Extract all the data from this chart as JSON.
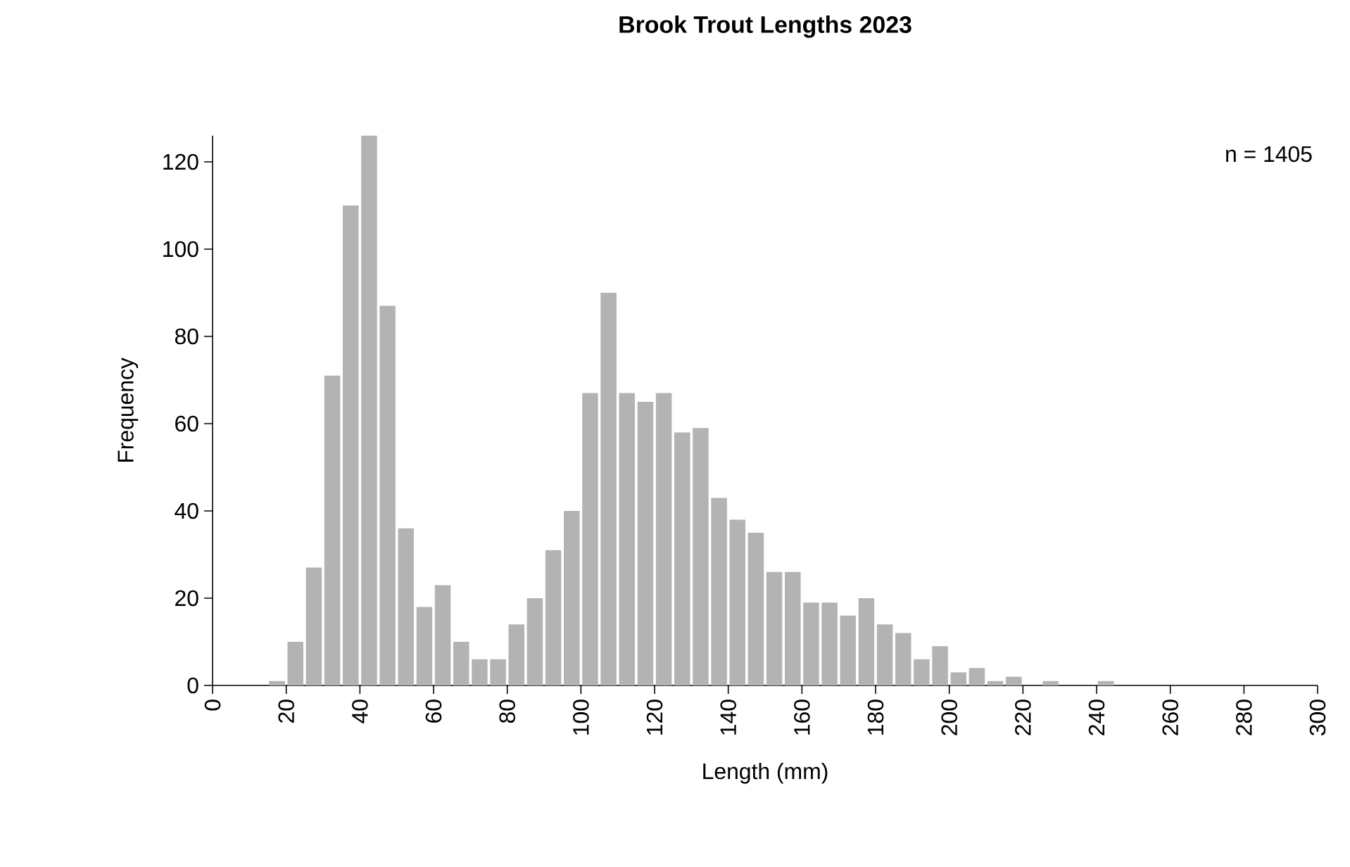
{
  "chart_data": {
    "type": "histogram",
    "title": "Brook Trout Lengths 2023",
    "xlabel": "Length (mm)",
    "ylabel": "Frequency",
    "annotations": [
      "n = 1405"
    ],
    "bins": [
      15,
      20,
      25,
      30,
      35,
      40,
      45,
      50,
      55,
      60,
      65,
      70,
      75,
      80,
      85,
      90,
      95,
      100,
      105,
      110,
      115,
      120,
      125,
      130,
      135,
      140,
      145,
      150,
      155,
      160,
      165,
      170,
      175,
      180,
      185,
      190,
      195,
      200,
      205,
      210,
      215,
      220,
      225,
      230,
      235,
      240,
      245
    ],
    "values": [
      1,
      10,
      27,
      71,
      110,
      126,
      87,
      36,
      18,
      23,
      10,
      6,
      6,
      14,
      20,
      31,
      40,
      67,
      90,
      67,
      65,
      67,
      58,
      59,
      43,
      38,
      35,
      26,
      26,
      19,
      19,
      16,
      20,
      14,
      12,
      6,
      9,
      3,
      4,
      1,
      2,
      0,
      1,
      0,
      0,
      1
    ],
    "color": "#b3b3b3",
    "xlim": [
      0,
      300
    ],
    "ylim": [
      0,
      126
    ],
    "xticks": [
      0,
      20,
      40,
      60,
      80,
      100,
      120,
      140,
      160,
      180,
      200,
      220,
      240,
      260,
      280,
      300
    ],
    "yticks": [
      0,
      20,
      40,
      60,
      80,
      100,
      120
    ],
    "grid": false
  }
}
